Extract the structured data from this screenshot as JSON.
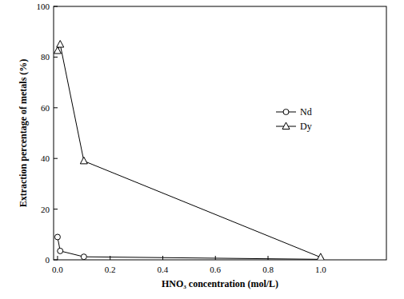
{
  "chart_data": {
    "type": "line",
    "x_label": "HNO₃ concentration (mol/L)",
    "y_label": "Extraction percentage of metals (%)",
    "x": [
      0,
      0.01,
      0.1,
      1.0
    ],
    "series": [
      {
        "name": "Nd",
        "color": "#000000",
        "marker": "circle",
        "line_style": "solid",
        "values": [
          9,
          3.5,
          1.2,
          0.2
        ]
      },
      {
        "name": "Dy",
        "color": "#000000",
        "marker": "triangle",
        "line_style": "solid",
        "values": [
          82.5,
          85,
          39,
          1
        ]
      }
    ],
    "xlim": [
      -0.015,
      1.25
    ],
    "xticks": [
      {
        "value": 0,
        "label": "0.0"
      },
      0.2,
      0.4,
      0.6,
      0.8,
      {
        "value": 1,
        "label": "1.0"
      }
    ],
    "ylim": [
      0,
      100
    ],
    "yticks": [
      0,
      20,
      40,
      60,
      80,
      100
    ],
    "grid": false,
    "legend": "right"
  }
}
